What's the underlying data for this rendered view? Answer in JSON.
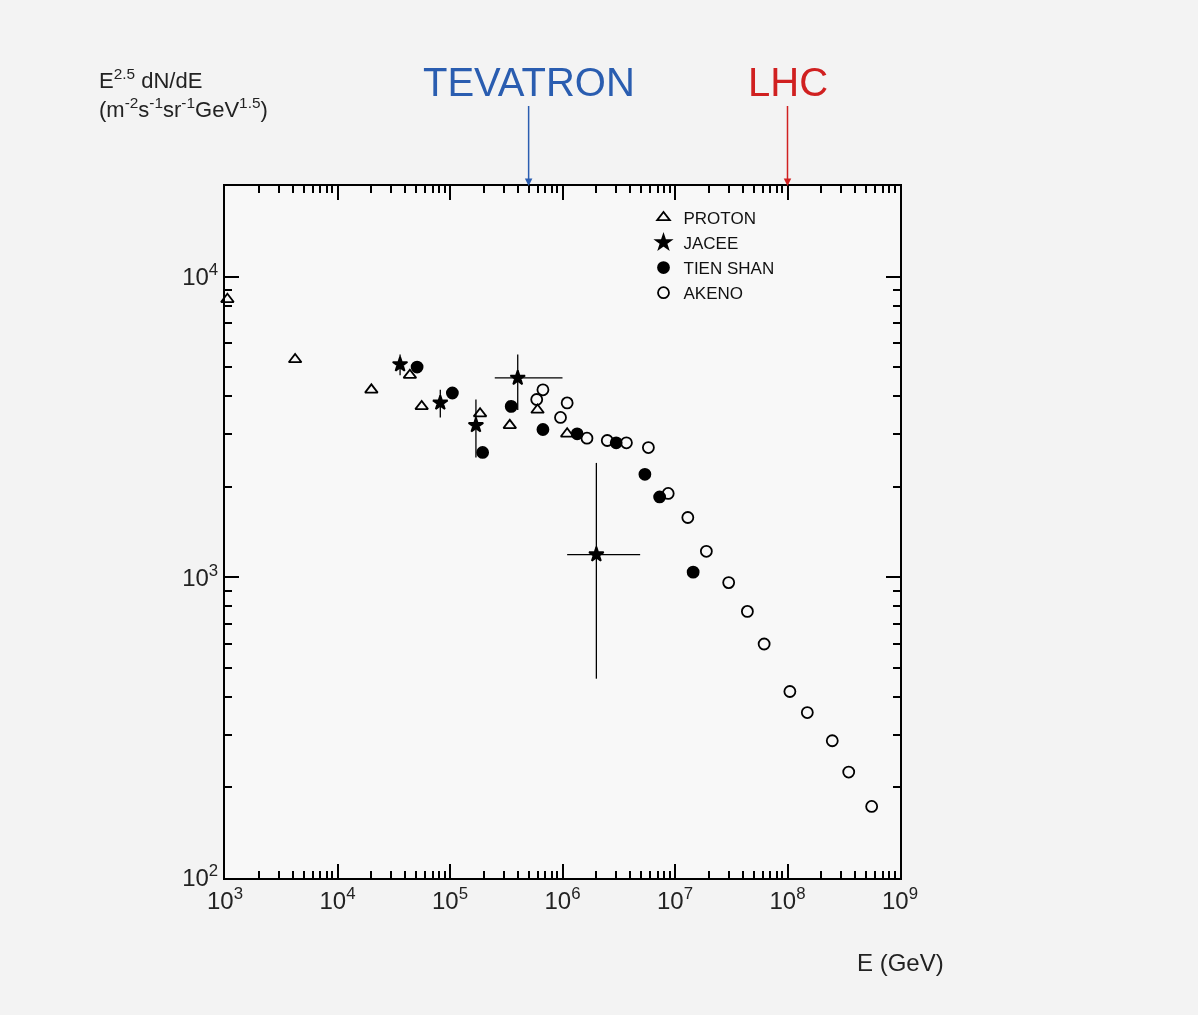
{
  "chart_data": {
    "type": "scatter",
    "xlabel": "E (GeV)",
    "ylabel": "E$^{2.5}$ dN/dE\n(m$^{-2}$s$^{-1}$sr$^{-1}$GeV$^{1.5}$)",
    "log": "xy",
    "xlim": [
      1000,
      1000000000
    ],
    "ylim": [
      100,
      20000
    ],
    "xticks": [
      {
        "value": 1000,
        "label": "10$^{3}$"
      },
      {
        "value": 10000,
        "label": "10$^{4}$"
      },
      {
        "value": 100000,
        "label": "10$^{5}$"
      },
      {
        "value": 1000000,
        "label": "10$^{6}$"
      },
      {
        "value": 10000000,
        "label": "10$^{7}$"
      },
      {
        "value": 100000000,
        "label": "10$^{8}$"
      },
      {
        "value": 1000000000,
        "label": "10$^{9}$"
      }
    ],
    "yticks": [
      {
        "value": 100,
        "label": "10$^{2}$"
      },
      {
        "value": 1000,
        "label": "10$^{3}$"
      },
      {
        "value": 10000,
        "label": "10$^{4}$"
      }
    ],
    "grid": false,
    "legend": "top right",
    "series": [
      {
        "name": "PROTON",
        "color": "#000000",
        "marker": "triangle-open",
        "x": [
          1050,
          4200,
          20000,
          44000,
          56000,
          185000,
          340000,
          600000,
          1100000
        ],
        "values": [
          8400,
          5300,
          4200,
          4700,
          3700,
          3500,
          3200,
          3600,
          3000
        ]
      },
      {
        "name": "JACEE",
        "color": "#000000",
        "marker": "star",
        "x": [
          36000,
          82000,
          170000,
          400000,
          2000000
        ],
        "values": [
          5100,
          3800,
          3200,
          4600,
          1190
        ],
        "errors": [
          [
            4700,
            5500
          ],
          [
            3400,
            4200
          ],
          [
            2500,
            3900
          ],
          [
            3600,
            5500
          ],
          [
            460,
            2400
          ]
        ],
        "xerrors": [
          null,
          null,
          null,
          [
            250000,
            1000000
          ],
          [
            1100000,
            4900000
          ]
        ]
      },
      {
        "name": "TIEN SHAN",
        "color": "#000000",
        "marker": "circle",
        "x": [
          51000,
          105000,
          195000,
          350000,
          670000,
          1350000,
          3000000,
          5400000,
          7300000,
          14500000
        ],
        "values": [
          5000,
          4100,
          2600,
          3700,
          3100,
          3000,
          2800,
          2200,
          1850,
          1040
        ]
      },
      {
        "name": "AKENO",
        "color": "#000000",
        "marker": "circle-open",
        "x": [
          590000,
          670000,
          960000,
          1100000,
          1650000,
          2500000,
          3700000,
          5800000,
          8700000,
          13000000,
          19000000,
          30000000,
          44000000,
          62000000,
          105000000,
          150000000,
          250000000,
          350000000,
          560000000
        ],
        "values": [
          3900,
          4200,
          3400,
          3800,
          2900,
          2850,
          2800,
          2700,
          1900,
          1580,
          1220,
          960,
          770,
          600,
          417,
          355,
          286,
          225,
          173
        ]
      }
    ],
    "ref_lines": [
      {
        "axis": "x",
        "value": 500000,
        "label": "TEVATRON",
        "color": "#2a5db0"
      },
      {
        "axis": "x",
        "value": 100000000,
        "label": "LHC",
        "color": "#d02020"
      }
    ]
  }
}
